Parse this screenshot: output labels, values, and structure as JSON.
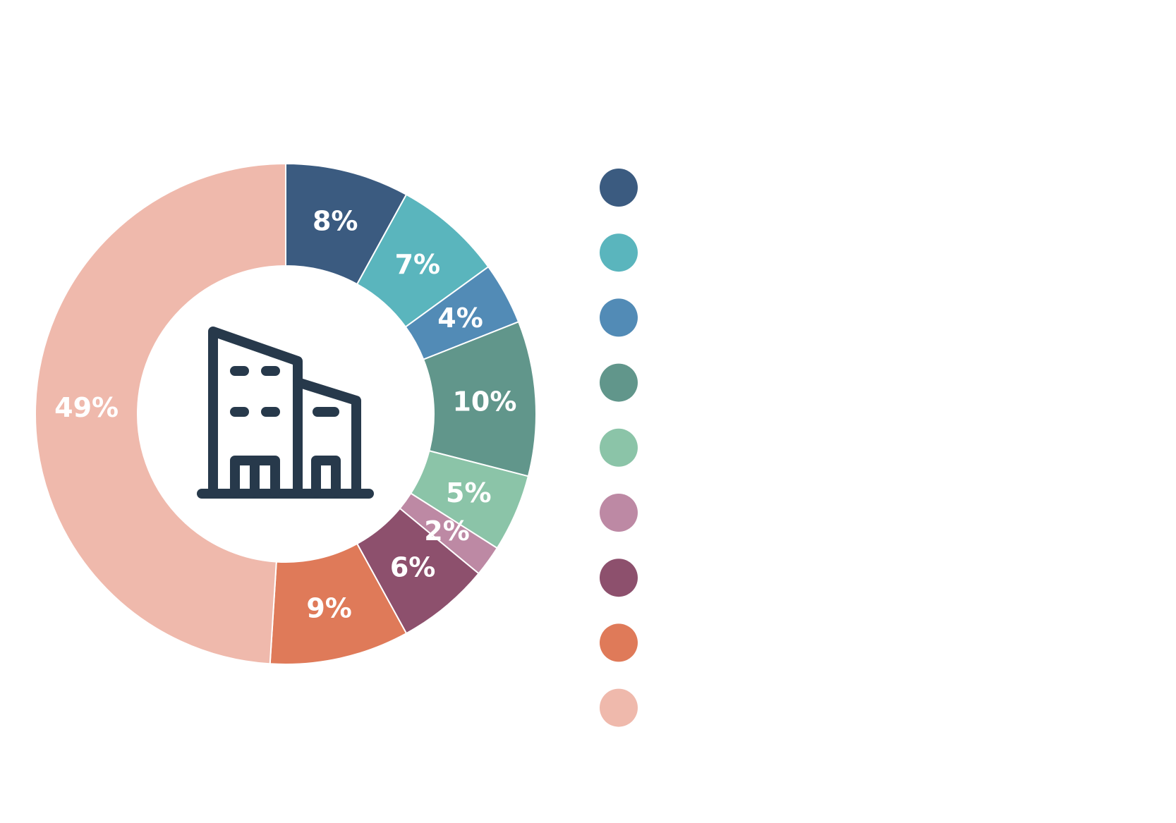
{
  "chart_data": {
    "type": "pie",
    "title": "",
    "unit": "%",
    "slices": [
      {
        "value": 8,
        "label": "8%",
        "color": "#3b5b80"
      },
      {
        "value": 7,
        "label": "7%",
        "color": "#5ab5bd"
      },
      {
        "value": 4,
        "label": "4%",
        "color": "#528bb6"
      },
      {
        "value": 10,
        "label": "10%",
        "color": "#61968b"
      },
      {
        "value": 5,
        "label": "5%",
        "color": "#8bc4a8"
      },
      {
        "value": 2,
        "label": "2%",
        "color": "#bd89a4"
      },
      {
        "value": 6,
        "label": "6%",
        "color": "#8d506d"
      },
      {
        "value": 9,
        "label": "9%",
        "color": "#df7a59"
      },
      {
        "value": 49,
        "label": "49%",
        "color": "#efb9ac"
      }
    ],
    "legend": {
      "placement": "right"
    }
  },
  "center_icon": {
    "name": "building-icon",
    "color": "#27394b"
  }
}
